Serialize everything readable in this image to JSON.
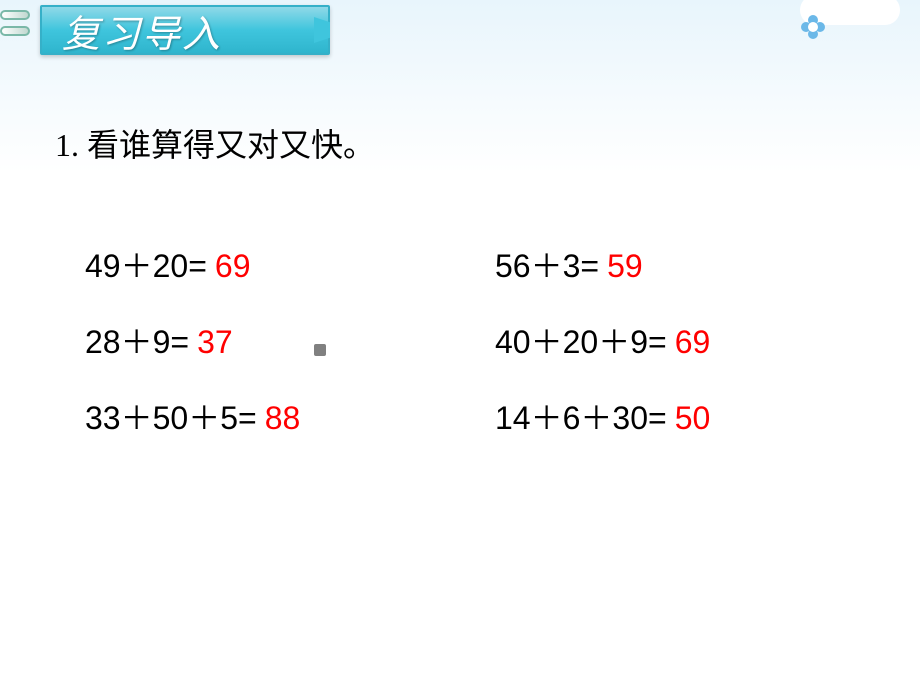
{
  "header": {
    "title": "复习导入"
  },
  "question": {
    "number": "1",
    "text": "看谁算得又对又快。"
  },
  "problems": [
    {
      "expression": "49＋20=",
      "answer": "69"
    },
    {
      "expression": "56＋3=",
      "answer": "59"
    },
    {
      "expression": "28＋9=",
      "answer": "37"
    },
    {
      "expression": "40＋20＋9=",
      "answer": "69"
    },
    {
      "expression": "33＋50＋5=",
      "answer": "88"
    },
    {
      "expression": "14＋6＋30=",
      "answer": "50"
    }
  ],
  "styling": {
    "slide_width": 920,
    "slide_height": 690,
    "background_gradient_top": "#e8f5fc",
    "background_gradient_bottom": "#ffffff",
    "title_tab_color": "#3fc5dd",
    "title_text_color": "#ffffff",
    "title_fontsize": 38,
    "question_fontsize": 32,
    "question_color": "#000000",
    "problem_fontsize": 32,
    "expression_color": "#000000",
    "answer_color": "#ff0000",
    "cloud_color": "#ffffff",
    "flower_petal_color": "#6bb8e8",
    "binder_ring_color": "#7ab8a8"
  }
}
